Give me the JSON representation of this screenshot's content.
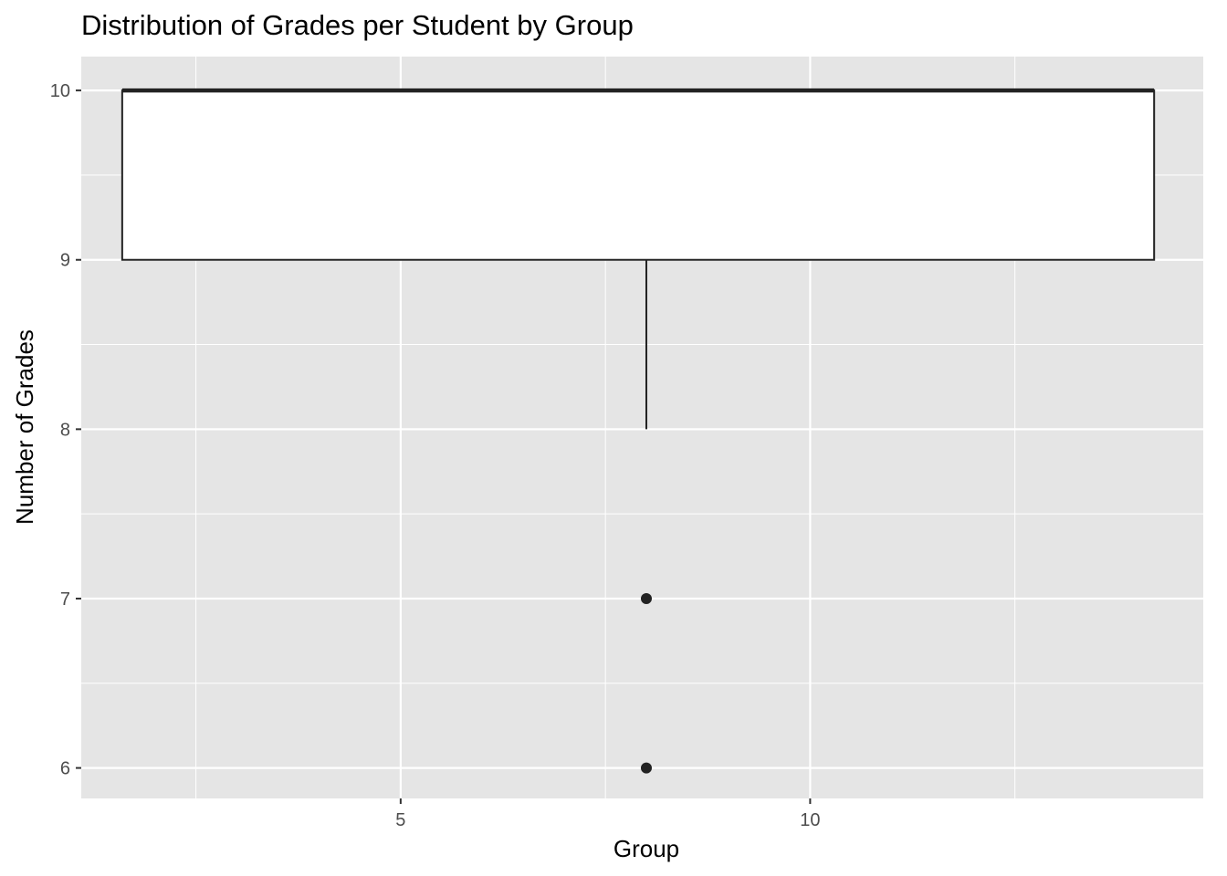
{
  "chart_data": {
    "type": "boxplot",
    "title": "Distribution of Grades per Student by Group",
    "xlabel": "Group",
    "ylabel": "Number of Grades",
    "xlim": [
      1.1,
      14.8
    ],
    "ylim": [
      5.82,
      10.2
    ],
    "x_ticks": [
      5,
      10
    ],
    "x_tick_labels": [
      "5",
      "10"
    ],
    "x_minor_ticks": [
      2.5,
      7.5,
      12.5
    ],
    "y_ticks": [
      6,
      7,
      8,
      9,
      10
    ],
    "y_tick_labels": [
      "6",
      "7",
      "8",
      "9",
      "10"
    ],
    "y_minor_ticks": [
      6.5,
      7.5,
      8.5,
      9.5
    ],
    "grid": true,
    "legend": "none",
    "boxes": [
      {
        "center": 8,
        "x_range": [
          1.6,
          14.2
        ],
        "lower_whisker": 8,
        "q1": 9,
        "median": 10,
        "q3": 10,
        "upper_whisker": 10,
        "outliers": [
          7,
          6
        ]
      }
    ]
  },
  "colors": {
    "panel_background": "#e5e5e5",
    "grid_line": "#ffffff",
    "box_fill": "#ffffff",
    "box_stroke": "#222222",
    "tick_text": "#4d4d4d",
    "tick_mark": "#333333",
    "title_text": "#000000"
  }
}
